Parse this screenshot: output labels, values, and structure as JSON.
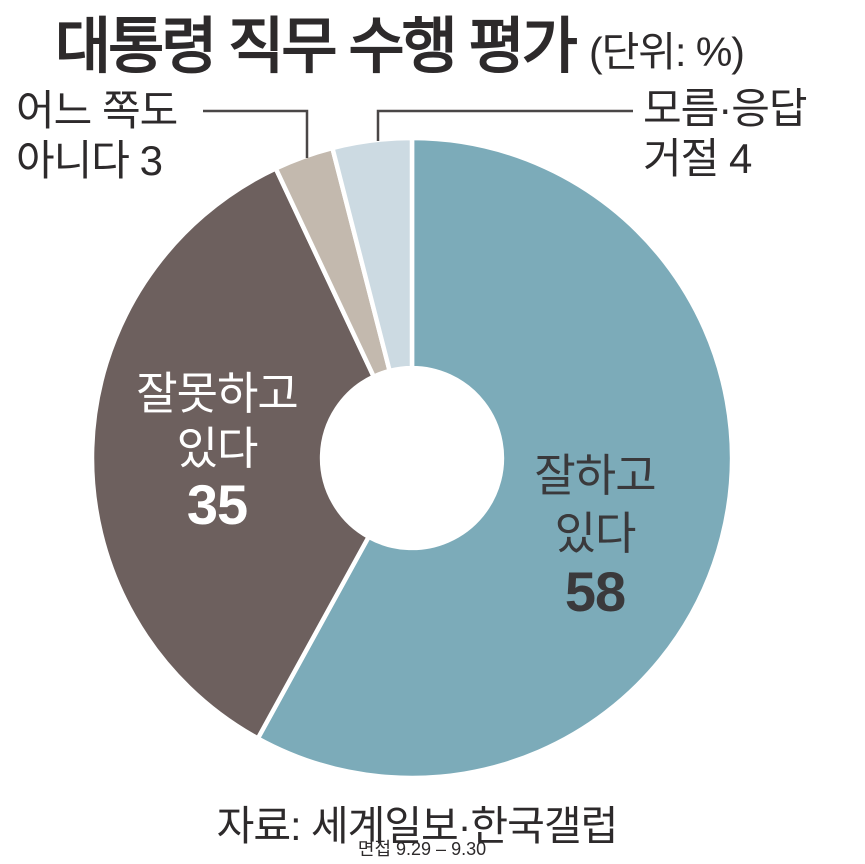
{
  "title": {
    "text": "대통령 직무 수행 평가",
    "unit": "(단위: %)"
  },
  "callouts": {
    "neither": {
      "line1": "어느 쪽도",
      "line2": "아니다 3"
    },
    "dontknow": {
      "line1": "모름·응답",
      "line2": "거절 4"
    }
  },
  "slice_labels": {
    "good": {
      "line1": "잘하고",
      "line2": "있다",
      "value": "58"
    },
    "bad": {
      "line1": "잘못하고",
      "line2": "있다",
      "value": "35"
    }
  },
  "footer": {
    "source": "자료: 세계일보·한국갤럽",
    "period": "면접 9.29 – 9.30"
  },
  "chart_data": {
    "type": "pie",
    "subtype": "donut",
    "title": "대통령 직무 수행 평가",
    "unit": "%",
    "categories": [
      "잘하고 있다",
      "잘못하고 있다",
      "어느 쪽도 아니다",
      "모름·응답 거절"
    ],
    "values": [
      58,
      35,
      3,
      4
    ],
    "colors": [
      "#7cabb9",
      "#6d605e",
      "#c3b9ae",
      "#ccdae2"
    ],
    "start_angle_deg": 0,
    "direction": "clockwise",
    "inner_radius_ratio": 0.281,
    "gap_color": "#ffffff",
    "source": "자료: 세계일보·한국갤럽",
    "note": "면접 9.29 – 9.30",
    "legend_position": "labels-on-slices-and-callouts"
  }
}
